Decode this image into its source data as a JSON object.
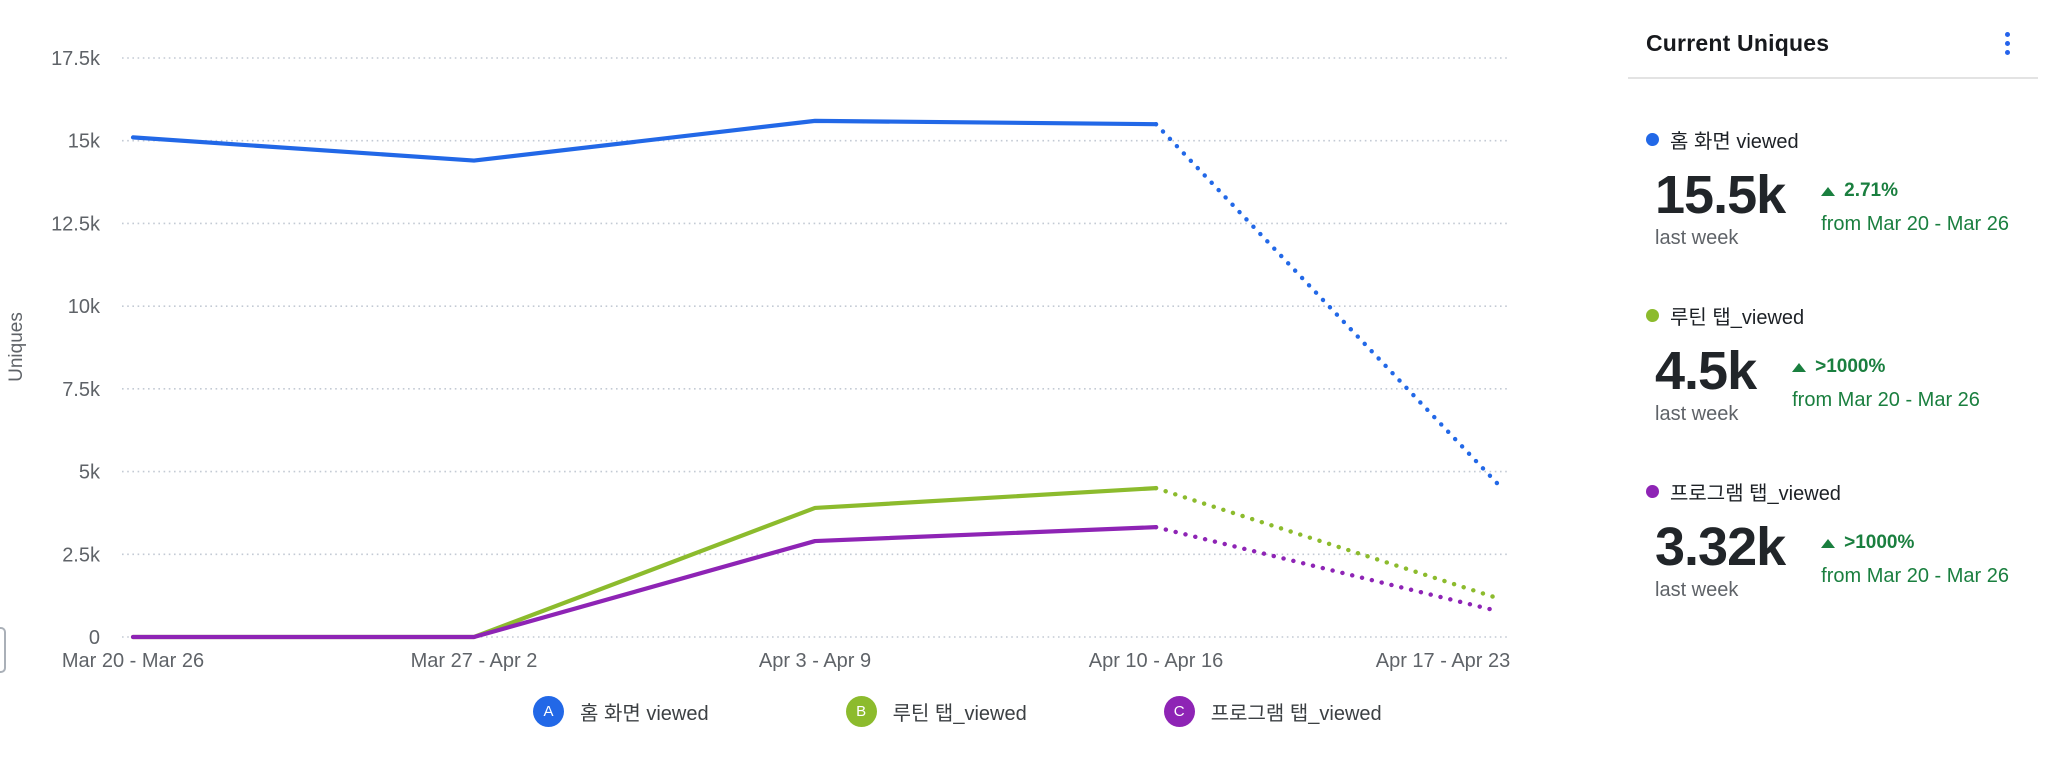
{
  "chart_data": {
    "type": "line",
    "title": "",
    "xlabel": "",
    "ylabel": "Uniques",
    "ylim": [
      0,
      17500
    ],
    "y_ticks": [
      "0",
      "2.5k",
      "5k",
      "7.5k",
      "10k",
      "12.5k",
      "15k",
      "17.5k"
    ],
    "y_tick_values": [
      0,
      2500,
      5000,
      7500,
      10000,
      12500,
      15000,
      17500
    ],
    "categories": [
      "Mar 20 - Mar 26",
      "Mar 27 - Apr 2",
      "Apr 3 - Apr 9",
      "Apr 10 - Apr 16",
      "Apr 17 - Apr 23"
    ],
    "grid": "horizontal-dotted",
    "legend_position": "bottom",
    "dotted_from_index": 3,
    "series": [
      {
        "name": "홈 화면 viewed",
        "letter": "A",
        "color": "#2268e7",
        "values": [
          15100,
          14400,
          15600,
          15500,
          4650
        ]
      },
      {
        "name": "루틴 탭_viewed",
        "letter": "B",
        "color": "#8cbb2d",
        "values": [
          0,
          0,
          3900,
          4500,
          1180
        ]
      },
      {
        "name": "프로그램 탭_viewed",
        "letter": "C",
        "color": "#8e24b5",
        "values": [
          0,
          0,
          2900,
          3320,
          790
        ]
      }
    ]
  },
  "panel": {
    "title": "Current Uniques",
    "menu_icon": "kebab-menu-icon",
    "stats": [
      {
        "name": "홈 화면 viewed",
        "color": "#2268e7",
        "value": "15.5k",
        "period": "last week",
        "change": "2.71%",
        "change_direction": "up",
        "compare": "from Mar 20 - Mar 26"
      },
      {
        "name": "루틴 탭_viewed",
        "color": "#8cbb2d",
        "value": "4.5k",
        "period": "last week",
        "change": ">1000%",
        "change_direction": "up",
        "compare": "from Mar 20 - Mar 26"
      },
      {
        "name": "프로그램 탭_viewed",
        "color": "#8e24b5",
        "value": "3.32k",
        "period": "last week",
        "change": ">1000%",
        "change_direction": "up",
        "compare": "from Mar 20 - Mar 26"
      }
    ]
  },
  "colors": {
    "axis_text": "#5f6368",
    "grid_dots": "#c3cad4",
    "positive_change": "#1a7f3f",
    "menu_accent": "#2563eb"
  }
}
